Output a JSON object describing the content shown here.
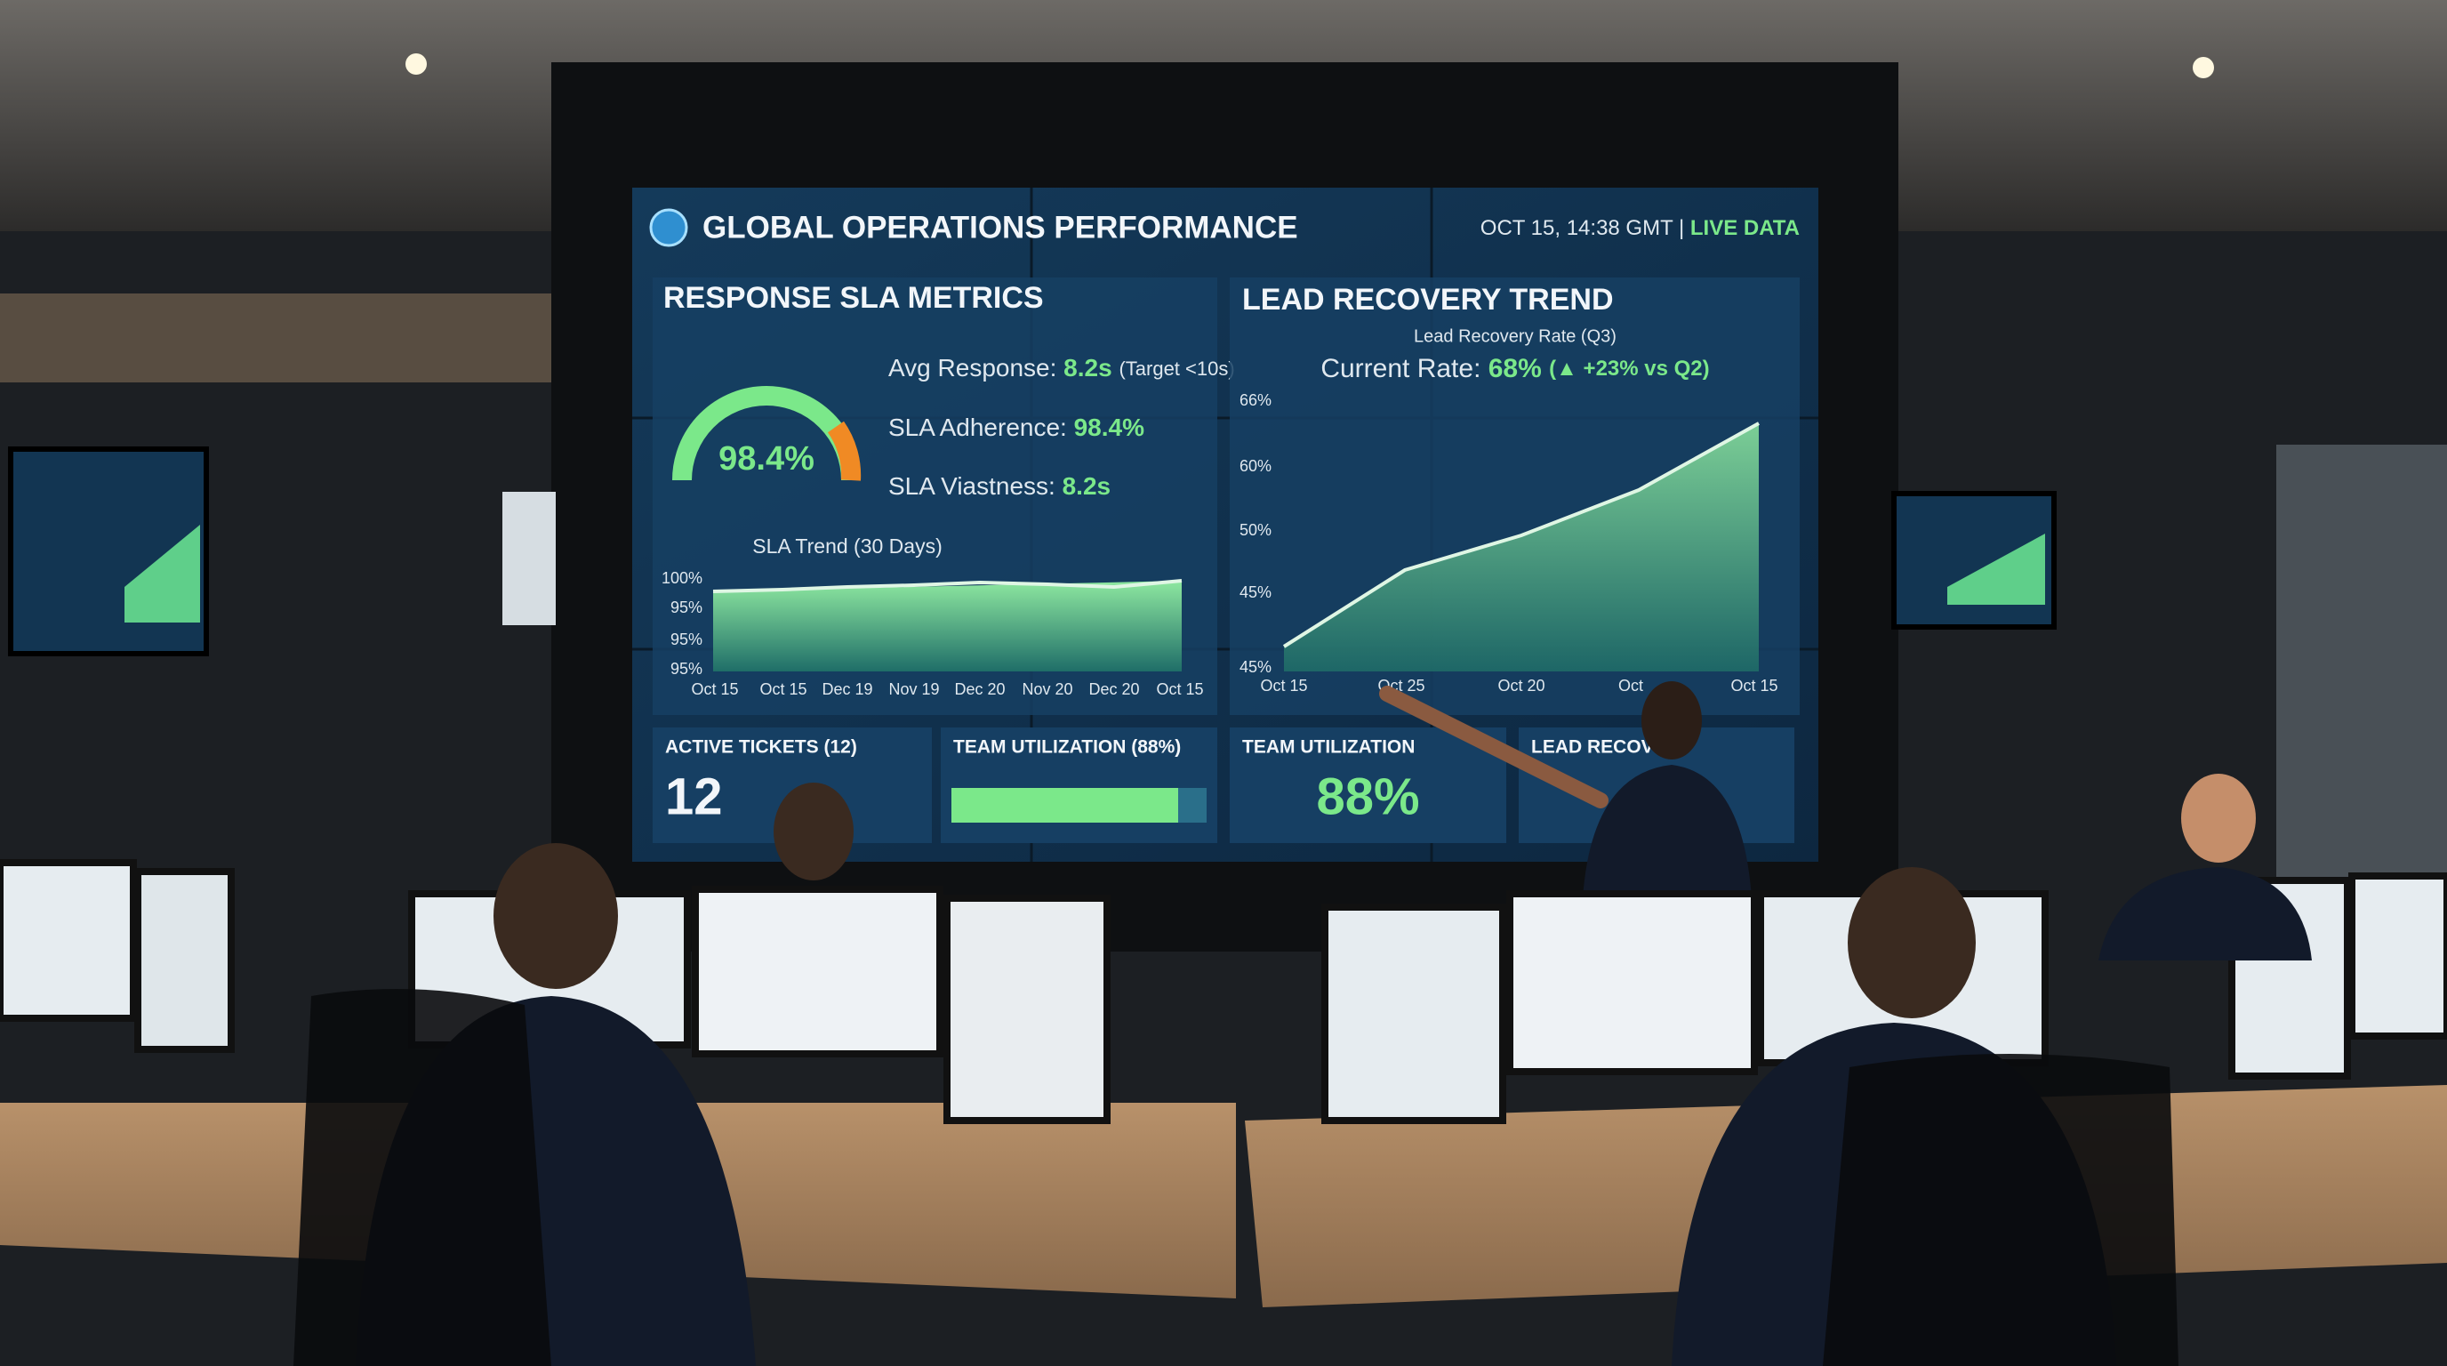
{
  "dashboard": {
    "header": {
      "title": "GLOBAL OPERATIONS PERFORMANCE",
      "timestamp": "OCT 15, 14:38 GMT | ",
      "status": "LIVE DATA"
    },
    "sla_panel": {
      "title": "RESPONSE SLA METRICS",
      "gauge_value": "98.4%",
      "metrics": [
        {
          "label": "Avg Response:",
          "value": "8.2s",
          "note": "(Target <10s)"
        },
        {
          "label": "SLA Adherence:",
          "value": "98.4%"
        },
        {
          "label": "SLA Viastness:",
          "value": "8.2s"
        }
      ],
      "trend_title": "SLA Trend (30 Days)",
      "y_labels": [
        "100%",
        "95%",
        "95%",
        "95%"
      ],
      "x_labels": [
        "Oct 15",
        "Oct 15",
        "Dec 19",
        "Nov 19",
        "Dec 20",
        "Nov 20",
        "Dec 20",
        "Oct 15"
      ]
    },
    "lead_panel": {
      "title": "LEAD RECOVERY TREND",
      "subtitle": "Lead Recovery Rate (Q3)",
      "rate_label": "Current Rate:",
      "rate_value": "68%",
      "rate_change": "(▲ +23% vs Q2)",
      "y_labels": [
        "66%",
        "60%",
        "50%",
        "45%",
        "45%"
      ],
      "x_labels": [
        "Oct 15",
        "Oct 25",
        "Oct 20",
        "Oct",
        "Oct 15"
      ]
    },
    "tiles": [
      {
        "label": "ACTIVE TICKETS (12)",
        "value": "12"
      },
      {
        "label": "TEAM UTILIZATION (88%)"
      },
      {
        "label": "TEAM UTILIZATION",
        "value": "88%"
      },
      {
        "label": "LEAD RECOV"
      }
    ]
  }
}
